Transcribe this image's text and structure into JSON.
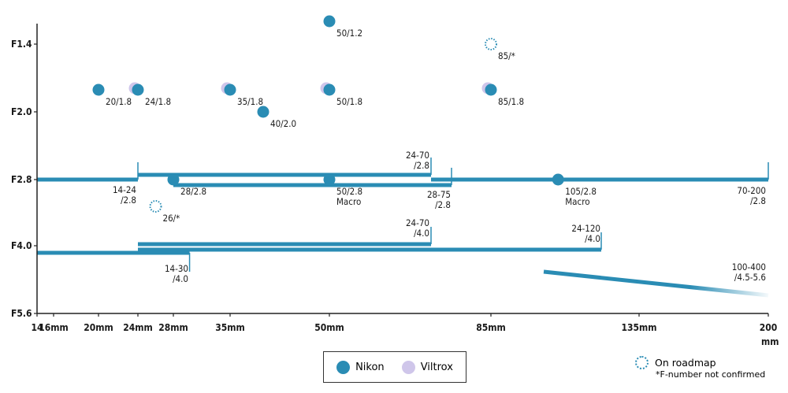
{
  "colors": {
    "nikon": "#2a8cb4",
    "viltrox": "#cfc6ea",
    "axis": "#222222"
  },
  "chart_data": {
    "type": "scatter",
    "x_axis": {
      "ticks": [
        {
          "v": 14,
          "label": "14"
        },
        {
          "v": 16,
          "label": "16mm"
        },
        {
          "v": 20,
          "label": "20mm"
        },
        {
          "v": 24,
          "label": "24mm"
        },
        {
          "v": 28,
          "label": "28mm"
        },
        {
          "v": 35,
          "label": "35mm"
        },
        {
          "v": 50,
          "label": "50mm"
        },
        {
          "v": 85,
          "label": "85mm"
        },
        {
          "v": 135,
          "label": "135mm"
        },
        {
          "v": 200,
          "label": "200"
        }
      ],
      "unit": "mm"
    },
    "y_axis": {
      "ticks": [
        "F1.4",
        "F2.0",
        "F2.8",
        "F4.0",
        "F5.6"
      ]
    },
    "series": [
      {
        "name": "Nikon",
        "color": "#2a8cb4"
      },
      {
        "name": "Viltrox",
        "color": "#cfc6ea"
      }
    ],
    "primes": [
      {
        "focal": 50,
        "f": 1.2,
        "label": "50/1.2",
        "brand": "Nikon"
      },
      {
        "focal": 85,
        "f": 1.4,
        "label": "85/*",
        "brand": "roadmap"
      },
      {
        "focal": 20,
        "f": 1.8,
        "label": "20/1.8",
        "brand": "Nikon"
      },
      {
        "focal": 24,
        "f": 1.8,
        "label": "24/1.8",
        "brand": "Nikon",
        "viltrox": true
      },
      {
        "focal": 35,
        "f": 1.8,
        "label": "35/1.8",
        "brand": "Nikon",
        "viltrox": true
      },
      {
        "focal": 50,
        "f": 1.8,
        "label": "50/1.8",
        "brand": "Nikon",
        "viltrox": true
      },
      {
        "focal": 85,
        "f": 1.8,
        "label": "85/1.8",
        "brand": "Nikon",
        "viltrox": true
      },
      {
        "focal": 40,
        "f": 2.0,
        "label": "40/2.0",
        "brand": "Nikon"
      },
      {
        "focal": 28,
        "f": 2.8,
        "label": "28/2.8",
        "brand": "Nikon"
      },
      {
        "focal": 50,
        "f": 2.8,
        "label": "50/2.8 Macro",
        "brand": "Nikon"
      },
      {
        "focal": 105,
        "f": 2.8,
        "label": "105/2.8 Macro",
        "brand": "Nikon"
      },
      {
        "focal": 26,
        "f": 3.2,
        "label": "26/*",
        "brand": "roadmap"
      }
    ],
    "zooms": [
      {
        "from": 14,
        "to": 24,
        "f": 2.8,
        "label": "14-24 /2.8"
      },
      {
        "from": 24,
        "to": 70,
        "f": 2.8,
        "label": "24-70 /2.8"
      },
      {
        "from": 28,
        "to": 75,
        "f": 2.8,
        "label": "28-75 /2.8"
      },
      {
        "from": 70,
        "to": 200,
        "f": 2.8,
        "label": "70-200 /2.8"
      },
      {
        "from": 24,
        "to": 70,
        "f": 4.0,
        "label": "24-70 /4.0"
      },
      {
        "from": 24,
        "to": 120,
        "f": 4.0,
        "label": "24-120 /4.0"
      },
      {
        "from": 14,
        "to": 30,
        "f": 4.0,
        "label": "14-30 /4.0"
      },
      {
        "from": 100,
        "to": 400,
        "f_from": 4.5,
        "f_to": 5.6,
        "label": "100-400 /4.5-5.6"
      }
    ]
  },
  "legend": {
    "nikon": "Nikon",
    "viltrox": "Viltrox",
    "roadmap": "On roadmap",
    "roadmap_note": "*F-number not confirmed"
  },
  "axis_extra": {
    "mm": "mm"
  }
}
